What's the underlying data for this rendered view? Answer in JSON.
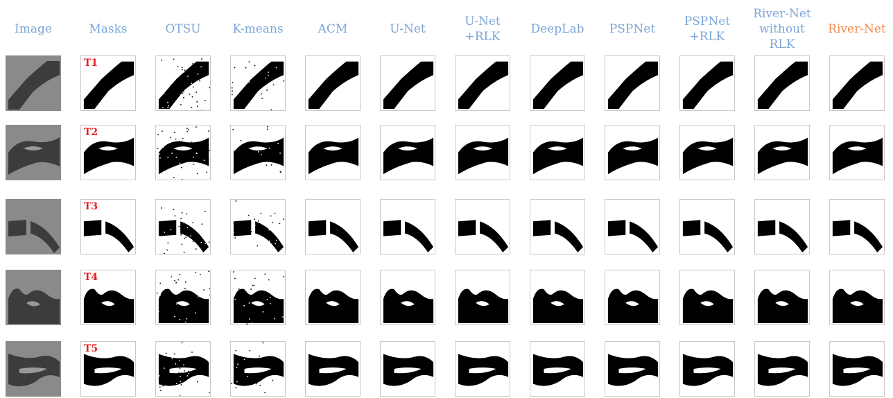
{
  "header_color": "#7aa6d6",
  "highlight_color": "#f08a4b",
  "tag_color": "#e32024",
  "columns": [
    {
      "label": "Image",
      "highlight": false
    },
    {
      "label": "Masks",
      "highlight": false
    },
    {
      "label": "OTSU",
      "highlight": false
    },
    {
      "label": "K-means",
      "highlight": false
    },
    {
      "label": "ACM",
      "highlight": false
    },
    {
      "label": "U-Net",
      "highlight": false
    },
    {
      "label": "U-Net\n+RLK",
      "highlight": false
    },
    {
      "label": "DeepLab",
      "highlight": false
    },
    {
      "label": "PSPNet",
      "highlight": false
    },
    {
      "label": "PSPNet\n+RLK",
      "highlight": false
    },
    {
      "label": "River-Net\nwithout\nRLK",
      "highlight": false
    },
    {
      "label": "River-Net",
      "highlight": true
    }
  ],
  "rows": [
    {
      "label": "T1"
    },
    {
      "label": "T2"
    },
    {
      "label": "T3"
    },
    {
      "label": "T4"
    },
    {
      "label": "T5"
    }
  ]
}
